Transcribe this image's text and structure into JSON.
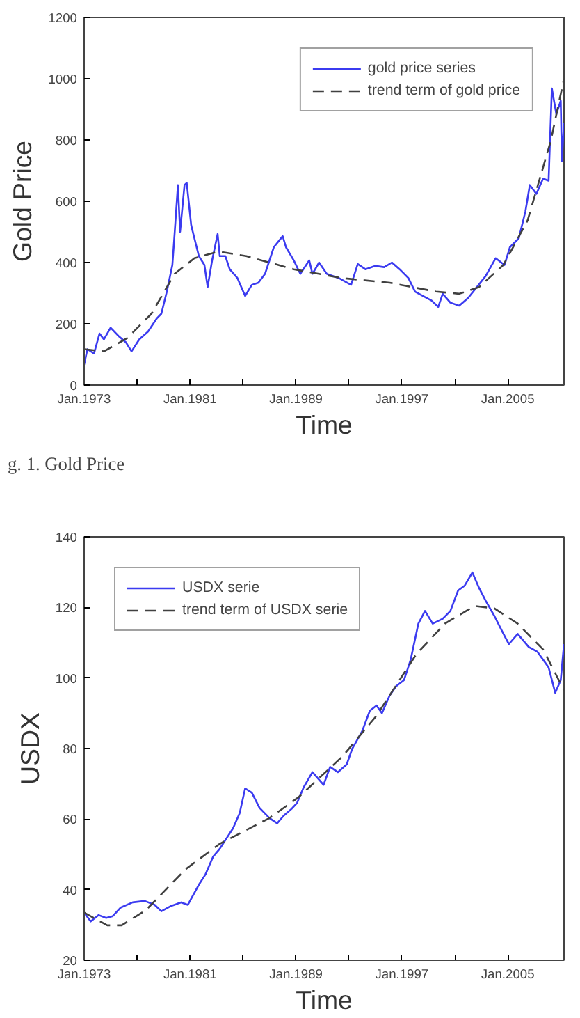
{
  "chart_data": [
    {
      "type": "line",
      "xlabel": "Time",
      "ylabel": "Gold Price",
      "annotations": [
        "g. 1.    Gold Price"
      ],
      "xlim": [
        "1973-01",
        "2009-04"
      ],
      "ylim": [
        0,
        1200
      ],
      "xticks": [
        {
          "value": "1973-01",
          "label": "Jan.1973"
        },
        {
          "value": "1977-01",
          "label": null
        },
        {
          "value": "1981-01",
          "label": "Jan.1981"
        },
        {
          "value": "1985-01",
          "label": null
        },
        {
          "value": "1989-01",
          "label": "Jan.1989"
        },
        {
          "value": "1993-01",
          "label": null
        },
        {
          "value": "1997-01",
          "label": "Jan.1997"
        },
        {
          "value": "2001-01",
          "label": null
        },
        {
          "value": "2005-01",
          "label": "Jan.2005"
        }
      ],
      "yticks": [
        0,
        200,
        400,
        600,
        800,
        1000,
        1200
      ],
      "grid": false,
      "legend": "top right",
      "series": [
        {
          "name": "gold price series",
          "color": "#3b3bf0",
          "line_style": "solid",
          "x": [
            "1973-01",
            "1973-04",
            "1973-10",
            "1974-03",
            "1974-07",
            "1975-01",
            "1975-08",
            "1976-03",
            "1976-08",
            "1977-03",
            "1977-11",
            "1978-07",
            "1978-11",
            "1979-04",
            "1979-09",
            "1979-11",
            "1980-02",
            "1980-04",
            "1980-08",
            "1980-10",
            "1981-02",
            "1981-05",
            "1981-09",
            "1982-02",
            "1982-05",
            "1982-09",
            "1983-02",
            "1983-04",
            "1983-09",
            "1984-01",
            "1984-08",
            "1985-03",
            "1985-09",
            "1986-03",
            "1986-09",
            "1987-05",
            "1988-01",
            "1988-04",
            "1988-11",
            "1989-05",
            "1990-01",
            "1990-04",
            "1990-10",
            "1991-05",
            "1992-04",
            "1993-03",
            "1993-09",
            "1994-04",
            "1995-01",
            "1995-09",
            "1996-04",
            "1996-11",
            "1997-07",
            "1998-01",
            "1998-08",
            "1999-04",
            "1999-10",
            "2000-02",
            "2000-09",
            "2001-05",
            "2002-01",
            "2002-09",
            "2003-05",
            "2004-02",
            "2004-10",
            "2005-03",
            "2005-11",
            "2006-05",
            "2006-09",
            "2007-03",
            "2007-09",
            "2008-02",
            "2008-05",
            "2008-09",
            "2009-01",
            "2009-02",
            "2009-04"
          ],
          "values": [
            67,
            117,
            103,
            168,
            149,
            187,
            161,
            139,
            110,
            149,
            175,
            218,
            233,
            305,
            392,
            493,
            653,
            500,
            653,
            660,
            522,
            479,
            421,
            392,
            320,
            407,
            493,
            421,
            421,
            378,
            349,
            291,
            327,
            334,
            363,
            450,
            486,
            450,
            407,
            363,
            407,
            363,
            400,
            363,
            349,
            327,
            395,
            378,
            389,
            385,
            400,
            378,
            349,
            305,
            291,
            276,
            255,
            298,
            269,
            259,
            284,
            320,
            356,
            414,
            392,
            450,
            479,
            566,
            653,
            624,
            674,
            667,
            968,
            884,
            928,
            732,
            855
          ]
        },
        {
          "name": "trend term of gold price",
          "color": "#404040",
          "line_style": "dashed",
          "x": [
            "1973-01",
            "1974-07",
            "1976-04",
            "1978-02",
            "1979-11",
            "1981-05",
            "1983-03",
            "1985-04",
            "1988-11",
            "1992-07",
            "1996-02",
            "1999-08",
            "2001-05",
            "2002-11",
            "2004-09",
            "2006-07",
            "2008-04",
            "2009-04"
          ],
          "values": [
            117,
            110,
            153,
            233,
            363,
            414,
            436,
            421,
            378,
            349,
            334,
            305,
            298,
            320,
            392,
            537,
            797,
            1000
          ]
        }
      ]
    },
    {
      "type": "line",
      "xlabel": "Time",
      "ylabel": "USDX",
      "xlim": [
        "1973-01",
        "2009-04"
      ],
      "ylim": [
        20,
        140
      ],
      "xticks": [
        {
          "value": "1973-01",
          "label": "Jan.1973"
        },
        {
          "value": "1977-01",
          "label": null
        },
        {
          "value": "1981-01",
          "label": "Jan.1981"
        },
        {
          "value": "1985-01",
          "label": null
        },
        {
          "value": "1989-01",
          "label": "Jan.1989"
        },
        {
          "value": "1993-01",
          "label": null
        },
        {
          "value": "1997-01",
          "label": "Jan.1997"
        },
        {
          "value": "2001-01",
          "label": null
        },
        {
          "value": "2005-01",
          "label": "Jan.2005"
        }
      ],
      "yticks": [
        20,
        40,
        60,
        80,
        100,
        120,
        140
      ],
      "grid": false,
      "legend": "top left",
      "series": [
        {
          "name": "USDX serie",
          "color": "#3b3bf0",
          "line_style": "solid",
          "x": [
            "1973-01",
            "1973-07",
            "1974-02",
            "1974-09",
            "1975-03",
            "1975-10",
            "1976-09",
            "1977-08",
            "1978-05",
            "1978-11",
            "1979-08",
            "1980-05",
            "1980-11",
            "1981-09",
            "1982-03",
            "1982-10",
            "1983-04",
            "1984-04",
            "1984-10",
            "1985-03",
            "1985-09",
            "1986-04",
            "1987-01",
            "1987-08",
            "1988-02",
            "1988-09",
            "1989-02",
            "1989-08",
            "1990-04",
            "1991-02",
            "1991-08",
            "1992-03",
            "1992-11",
            "1993-04",
            "1994-01",
            "1994-08",
            "1995-02",
            "1995-07",
            "1996-02",
            "1996-08",
            "1997-03",
            "1997-09",
            "1998-04",
            "1998-10",
            "1999-05",
            "2000-02",
            "2000-09",
            "2001-04",
            "2001-10",
            "2002-05",
            "2002-11",
            "2003-05",
            "2004-01",
            "2004-08",
            "2005-02",
            "2005-10",
            "2006-08",
            "2007-04",
            "2008-02",
            "2008-08",
            "2009-01",
            "2009-04"
          ],
          "values": [
            33.5,
            31.0,
            32.8,
            32.0,
            32.5,
            34.9,
            36.4,
            36.8,
            35.7,
            33.9,
            35.4,
            36.4,
            35.7,
            41.4,
            44.3,
            49.4,
            51.6,
            57.4,
            61.7,
            68.7,
            67.5,
            63.2,
            60.3,
            58.8,
            61.0,
            62.9,
            64.6,
            69.0,
            73.3,
            69.7,
            74.8,
            73.3,
            75.5,
            79.9,
            84.9,
            90.7,
            92.2,
            90.0,
            95.1,
            97.7,
            99.4,
            105.2,
            115.4,
            119.0,
            115.4,
            116.8,
            119.0,
            124.8,
            126.2,
            129.9,
            125.5,
            121.9,
            117.5,
            113.2,
            109.6,
            112.5,
            108.8,
            107.4,
            103.0,
            95.8,
            99.4,
            109.6
          ]
        },
        {
          "name": "trend term of USDX serie",
          "color": "#404040",
          "line_style": "dashed",
          "x": [
            "1973-01",
            "1974-10",
            "1975-11",
            "1977-09",
            "1980-09",
            "1983-04",
            "1987-01",
            "1989-03",
            "1992-07",
            "1995-02",
            "1998-02",
            "2000-04",
            "2002-07",
            "2004-01",
            "2005-10",
            "2007-09",
            "2009-04"
          ],
          "values": [
            33.5,
            29.9,
            29.9,
            34.2,
            45.8,
            53.0,
            60.3,
            66.1,
            77.7,
            89.3,
            106.7,
            115.4,
            120.4,
            119.7,
            115.4,
            108.1,
            96.5
          ]
        }
      ]
    }
  ]
}
